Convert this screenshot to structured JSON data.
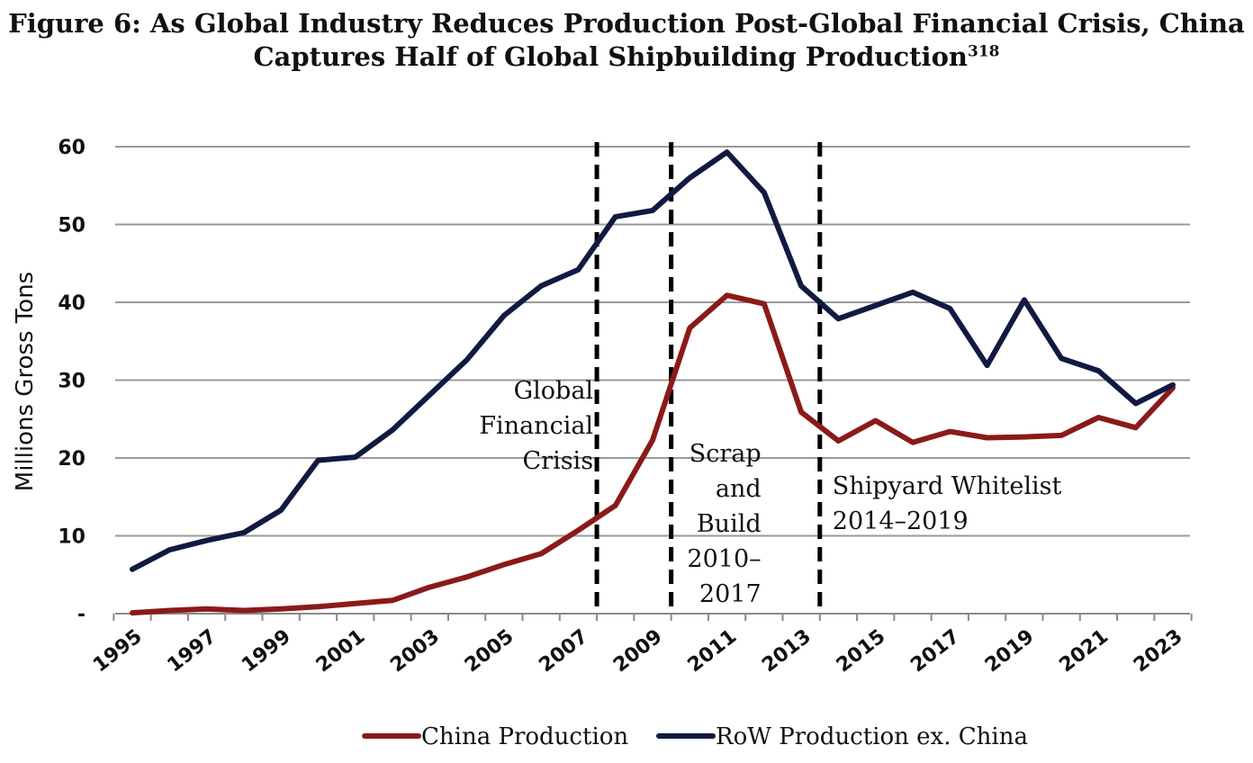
{
  "title_line1": "Figure 6:  As Global Industry Reduces Production Post-Global Financial Crisis, China",
  "title_line2": "Captures Half of Global Shipbuilding Production",
  "title_footnote": "318",
  "chart_data": {
    "type": "line",
    "ylabel": "Millions Gross Tons",
    "ylim": [
      0,
      60
    ],
    "y_ticks": [
      "-",
      "10",
      "20",
      "30",
      "40",
      "50",
      "60"
    ],
    "x_tick_labels": [
      "1995",
      "1997",
      "1999",
      "2001",
      "2003",
      "2005",
      "2007",
      "2009",
      "2011",
      "2013",
      "2015",
      "2017",
      "2019",
      "2021",
      "2023"
    ],
    "x": [
      1995,
      1996,
      1997,
      1998,
      1999,
      2000,
      2001,
      2002,
      2003,
      2004,
      2005,
      2006,
      2007,
      2008,
      2009,
      2010,
      2011,
      2012,
      2013,
      2014,
      2015,
      2016,
      2017,
      2018,
      2019,
      2020,
      2021,
      2022,
      2023
    ],
    "series": [
      {
        "name": "China Production",
        "color": "#8b1a1a",
        "values": [
          0.1,
          0.4,
          0.6,
          0.4,
          0.6,
          0.9,
          1.3,
          1.7,
          3.4,
          4.7,
          6.3,
          7.7,
          10.7,
          13.9,
          22.3,
          36.7,
          40.9,
          39.8,
          25.9,
          22.2,
          24.8,
          22.0,
          23.4,
          22.6,
          22.7,
          22.9,
          25.2,
          23.9,
          29.0
        ]
      },
      {
        "name": "RoW Production ex. China",
        "color": "#101a42",
        "values": [
          5.7,
          8.2,
          9.4,
          10.4,
          13.3,
          19.7,
          20.1,
          23.6,
          28.1,
          32.6,
          38.3,
          42.1,
          44.2,
          51.0,
          51.8,
          56.0,
          59.3,
          54.1,
          42.1,
          37.9,
          39.6,
          41.3,
          39.2,
          31.9,
          40.3,
          32.8,
          31.2,
          27.0,
          29.4
        ]
      }
    ],
    "annotations": [
      {
        "x": 2008,
        "lines": [
          "Global",
          "Financial",
          "Crisis"
        ],
        "side": "left"
      },
      {
        "x": 2010,
        "lines": [
          "Scrap",
          "and",
          "Build",
          "2010-",
          "2017"
        ],
        "side": "right"
      },
      {
        "x": 2014,
        "lines": [
          "Shipyard Whitelist",
          "2014-2019"
        ],
        "side": "right"
      }
    ],
    "grid": true,
    "legend_position": "bottom"
  }
}
